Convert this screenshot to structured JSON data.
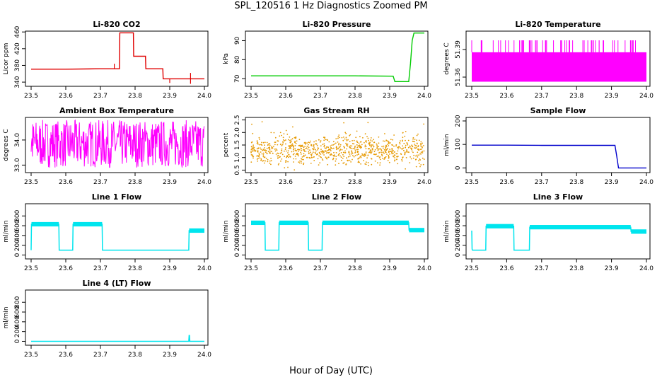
{
  "figure": {
    "title": "SPL_120516  1 Hz Diagnostics Zoomed PM",
    "xlabel": "Hour of Day (UTC)"
  },
  "chart_data": [
    {
      "type": "line",
      "title": "Li-820 CO2",
      "ylabel": "Licor ppm",
      "color": "#e00000",
      "xlim": [
        23.5,
        24.0
      ],
      "ylim": [
        330,
        462
      ],
      "x_ticks": [
        "23.5",
        "23.6",
        "23.7",
        "23.8",
        "23.9",
        "24.0"
      ],
      "y_ticks": [
        340,
        380,
        420,
        460
      ],
      "y_tick_labels": [
        "340",
        "380",
        "420",
        "460"
      ],
      "series": [
        {
          "x": [
            23.5,
            23.6,
            23.7,
            23.755,
            23.756,
            23.795,
            23.796,
            23.83,
            23.831,
            23.88,
            23.881,
            24.0
          ],
          "y": [
            371,
            371,
            372,
            372,
            458,
            458,
            402,
            402,
            372,
            372,
            348,
            348
          ]
        }
      ]
    },
    {
      "type": "line",
      "title": "Li-820 Pressure",
      "ylabel": "kPa",
      "color": "#00cc00",
      "xlim": [
        23.5,
        24.0
      ],
      "ylim": [
        66,
        95
      ],
      "x_ticks": [
        "23.5",
        "23.6",
        "23.7",
        "23.8",
        "23.9",
        "24.0"
      ],
      "y_ticks": [
        70,
        80,
        90
      ],
      "y_tick_labels": [
        "70",
        "80",
        "90"
      ],
      "series": [
        {
          "x": [
            23.5,
            23.6,
            23.7,
            23.8,
            23.91,
            23.915,
            23.955,
            23.96,
            23.965,
            23.97,
            24.0
          ],
          "y": [
            71.5,
            71.5,
            71.5,
            71.5,
            71.3,
            68.5,
            68.5,
            78,
            90,
            94,
            94
          ]
        }
      ]
    },
    {
      "type": "line",
      "title": "Li-820 Temperature",
      "ylabel": "degrees C",
      "color": "#ff00ff",
      "xlim": [
        23.5,
        24.0
      ],
      "ylim": [
        51.35,
        51.41
      ],
      "x_ticks": [
        "23.5",
        "23.6",
        "23.7",
        "23.8",
        "23.9",
        "24.0"
      ],
      "y_ticks": [
        51.36,
        51.39
      ],
      "y_tick_labels": [
        "51.36",
        "51.39"
      ],
      "band": {
        "low": 51.355,
        "high": 51.387,
        "spike": 51.4
      }
    },
    {
      "type": "line",
      "title": "Ambient Box Temperature",
      "ylabel": "degrees C",
      "color": "#ff00ff",
      "xlim": [
        23.5,
        24.0
      ],
      "ylim": [
        32.7,
        34.9
      ],
      "x_ticks": [
        "23.5",
        "23.6",
        "23.7",
        "23.8",
        "23.9",
        "24.0"
      ],
      "y_ticks": [
        33.0,
        34.0
      ],
      "y_tick_labels": [
        "33.0",
        "34.0"
      ],
      "band": {
        "low": 32.9,
        "high": 34.8,
        "mean": 33.4
      }
    },
    {
      "type": "scatter",
      "title": "Gas Stream RH",
      "ylabel": "percent",
      "color": "#e69900",
      "xlim": [
        23.5,
        24.0
      ],
      "ylim": [
        0.4,
        2.6
      ],
      "x_ticks": [
        "23.5",
        "23.6",
        "23.7",
        "23.8",
        "23.9",
        "24.0"
      ],
      "y_ticks": [
        0.5,
        1.0,
        1.5,
        2.0,
        2.5
      ],
      "y_tick_labels": [
        "0.5",
        "1.0",
        "1.5",
        "2.0",
        "2.5"
      ],
      "band": {
        "low": 0.9,
        "high": 1.7,
        "mean": 1.3
      }
    },
    {
      "type": "line",
      "title": "Sample Flow",
      "ylabel": "ml/min",
      "color": "#0000cc",
      "xlim": [
        23.5,
        24.0
      ],
      "ylim": [
        -20,
        215
      ],
      "x_ticks": [
        "23.5",
        "23.6",
        "23.7",
        "23.8",
        "23.9",
        "24.0"
      ],
      "y_ticks": [
        0,
        100,
        200
      ],
      "y_tick_labels": [
        "0",
        "100",
        "200"
      ],
      "series": [
        {
          "x": [
            23.5,
            23.6,
            23.7,
            23.8,
            23.91,
            23.915,
            23.92,
            24.0
          ],
          "y": [
            97,
            97,
            96,
            96,
            96,
            50,
            0,
            0
          ]
        }
      ]
    },
    {
      "type": "line",
      "title": "Line 1 Flow",
      "ylabel": "ml/min",
      "color": "#00e5ee",
      "xlim": [
        23.5,
        24.0
      ],
      "ylim": [
        -80,
        1050
      ],
      "x_ticks": [
        "23.5",
        "23.6",
        "23.7",
        "23.8",
        "23.9",
        "24.0"
      ],
      "y_ticks": [
        0,
        200,
        400,
        600,
        800
      ],
      "y_tick_labels": [
        "0",
        "200",
        "400",
        "600",
        "800"
      ],
      "series": [
        {
          "x": [
            23.5,
            23.501,
            23.58,
            23.581,
            23.62,
            23.621,
            23.705,
            23.706,
            23.955,
            23.956,
            24.0
          ],
          "y": [
            100,
            630,
            630,
            100,
            100,
            630,
            630,
            100,
            100,
            500,
            500
          ]
        }
      ]
    },
    {
      "type": "line",
      "title": "Line 2 Flow",
      "ylabel": "ml/min",
      "color": "#00e5ee",
      "xlim": [
        23.5,
        24.0
      ],
      "ylim": [
        -80,
        1050
      ],
      "x_ticks": [
        "23.5",
        "23.6",
        "23.7",
        "23.8",
        "23.9",
        "24.0"
      ],
      "y_ticks": [
        0,
        200,
        400,
        600,
        800
      ],
      "y_tick_labels": [
        "0",
        "200",
        "400",
        "600",
        "800"
      ],
      "series": [
        {
          "x": [
            23.5,
            23.54,
            23.541,
            23.58,
            23.581,
            23.665,
            23.666,
            23.705,
            23.706,
            23.955,
            23.956,
            24.0
          ],
          "y": [
            660,
            660,
            100,
            100,
            660,
            660,
            100,
            100,
            660,
            660,
            510,
            510
          ]
        }
      ]
    },
    {
      "type": "line",
      "title": "Line 3 Flow",
      "ylabel": "ml/min",
      "color": "#00e5ee",
      "xlim": [
        23.5,
        24.0
      ],
      "ylim": [
        -80,
        1050
      ],
      "x_ticks": [
        "23.5",
        "23.6",
        "23.7",
        "23.8",
        "23.9",
        "24.0"
      ],
      "y_ticks": [
        0,
        200,
        400,
        600,
        800
      ],
      "y_tick_labels": [
        "0",
        "200",
        "400",
        "600",
        "800"
      ],
      "series": [
        {
          "x": [
            23.5,
            23.501,
            23.502,
            23.54,
            23.541,
            23.62,
            23.621,
            23.665,
            23.666,
            23.955,
            23.956,
            24.0
          ],
          "y": [
            500,
            120,
            100,
            100,
            590,
            590,
            100,
            100,
            570,
            570,
            480,
            480
          ]
        }
      ]
    },
    {
      "type": "line",
      "title": "Line 4 (LT) Flow",
      "ylabel": "ml/min",
      "color": "#00e5ee",
      "xlim": [
        23.5,
        24.0
      ],
      "ylim": [
        -80,
        1050
      ],
      "x_ticks": [
        "23.5",
        "23.6",
        "23.7",
        "23.8",
        "23.9",
        "24.0"
      ],
      "y_ticks": [
        0,
        200,
        400,
        600,
        800
      ],
      "y_tick_labels": [
        "0",
        "200",
        "400",
        "600",
        "800"
      ],
      "series": [
        {
          "x": [
            23.5,
            23.955,
            23.956,
            23.957,
            23.958,
            24.0
          ],
          "y": [
            0,
            0,
            120,
            120,
            0,
            0
          ]
        }
      ]
    }
  ]
}
